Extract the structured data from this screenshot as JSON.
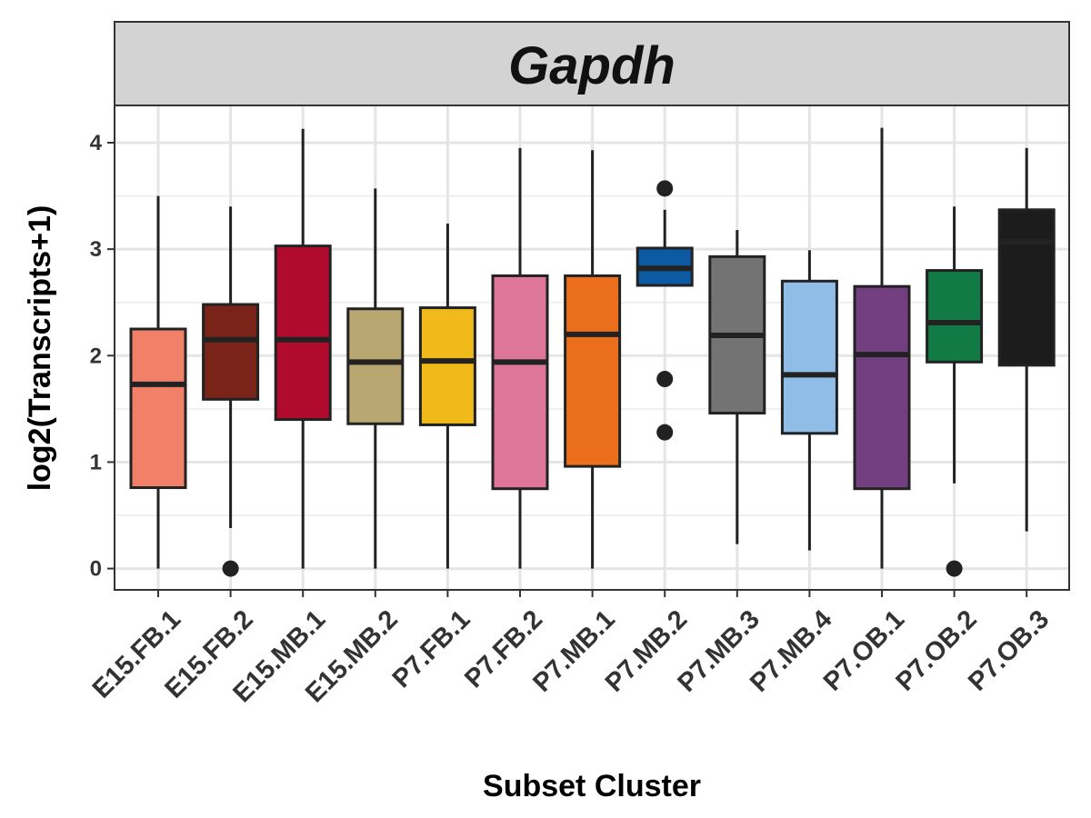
{
  "chart_data": {
    "type": "boxplot",
    "title": "Gapdh",
    "xlabel": "Subset Cluster",
    "ylabel": "log2(Transcripts+1)",
    "ylim": [
      -0.2,
      4.35
    ],
    "yticks": [
      0,
      1,
      2,
      3,
      4
    ],
    "grid": true,
    "legend": "none",
    "categories": [
      "E15.FB.1",
      "E15.FB.2",
      "E15.MB.1",
      "E15.MB.2",
      "P7.FB.1",
      "P7.FB.2",
      "P7.MB.1",
      "P7.MB.2",
      "P7.MB.3",
      "P7.MB.4",
      "P7.OB.1",
      "P7.OB.2",
      "P7.OB.3"
    ],
    "colors": [
      "#F08068",
      "#7A2318",
      "#B00B2C",
      "#B8A770",
      "#EFBA1A",
      "#DE7699",
      "#EA6E1C",
      "#0B5AA2",
      "#737373",
      "#90BDE7",
      "#743F80",
      "#117A45",
      "#1C1C1C"
    ],
    "boxes": [
      {
        "whisker_low": 0.0,
        "q1": 0.76,
        "median": 1.73,
        "q3": 2.25,
        "whisker_high": 3.5,
        "outliers": []
      },
      {
        "whisker_low": 0.38,
        "q1": 1.59,
        "median": 2.15,
        "q3": 2.48,
        "whisker_high": 3.4,
        "outliers": [
          0.0
        ]
      },
      {
        "whisker_low": 0.0,
        "q1": 1.4,
        "median": 2.15,
        "q3": 3.03,
        "whisker_high": 4.13,
        "outliers": []
      },
      {
        "whisker_low": 0.0,
        "q1": 1.36,
        "median": 1.94,
        "q3": 2.44,
        "whisker_high": 3.57,
        "outliers": []
      },
      {
        "whisker_low": 0.0,
        "q1": 1.35,
        "median": 1.95,
        "q3": 2.45,
        "whisker_high": 3.24,
        "outliers": []
      },
      {
        "whisker_low": 0.0,
        "q1": 0.75,
        "median": 1.94,
        "q3": 2.75,
        "whisker_high": 3.95,
        "outliers": []
      },
      {
        "whisker_low": 0.0,
        "q1": 0.96,
        "median": 2.2,
        "q3": 2.75,
        "whisker_high": 3.93,
        "outliers": []
      },
      {
        "whisker_low": 2.65,
        "q1": 2.66,
        "median": 2.82,
        "q3": 3.01,
        "whisker_high": 3.37,
        "outliers": [
          3.57,
          1.78,
          1.28
        ]
      },
      {
        "whisker_low": 0.23,
        "q1": 1.46,
        "median": 2.19,
        "q3": 2.93,
        "whisker_high": 3.18,
        "outliers": []
      },
      {
        "whisker_low": 0.17,
        "q1": 1.27,
        "median": 1.82,
        "q3": 2.7,
        "whisker_high": 2.99,
        "outliers": []
      },
      {
        "whisker_low": 0.0,
        "q1": 0.75,
        "median": 2.01,
        "q3": 2.65,
        "whisker_high": 4.14,
        "outliers": []
      },
      {
        "whisker_low": 0.8,
        "q1": 1.94,
        "median": 2.31,
        "q3": 2.8,
        "whisker_high": 3.4,
        "outliers": [
          0.0
        ]
      },
      {
        "whisker_low": 0.35,
        "q1": 1.91,
        "median": 3.07,
        "q3": 3.37,
        "whisker_high": 3.95,
        "outliers": []
      }
    ]
  }
}
